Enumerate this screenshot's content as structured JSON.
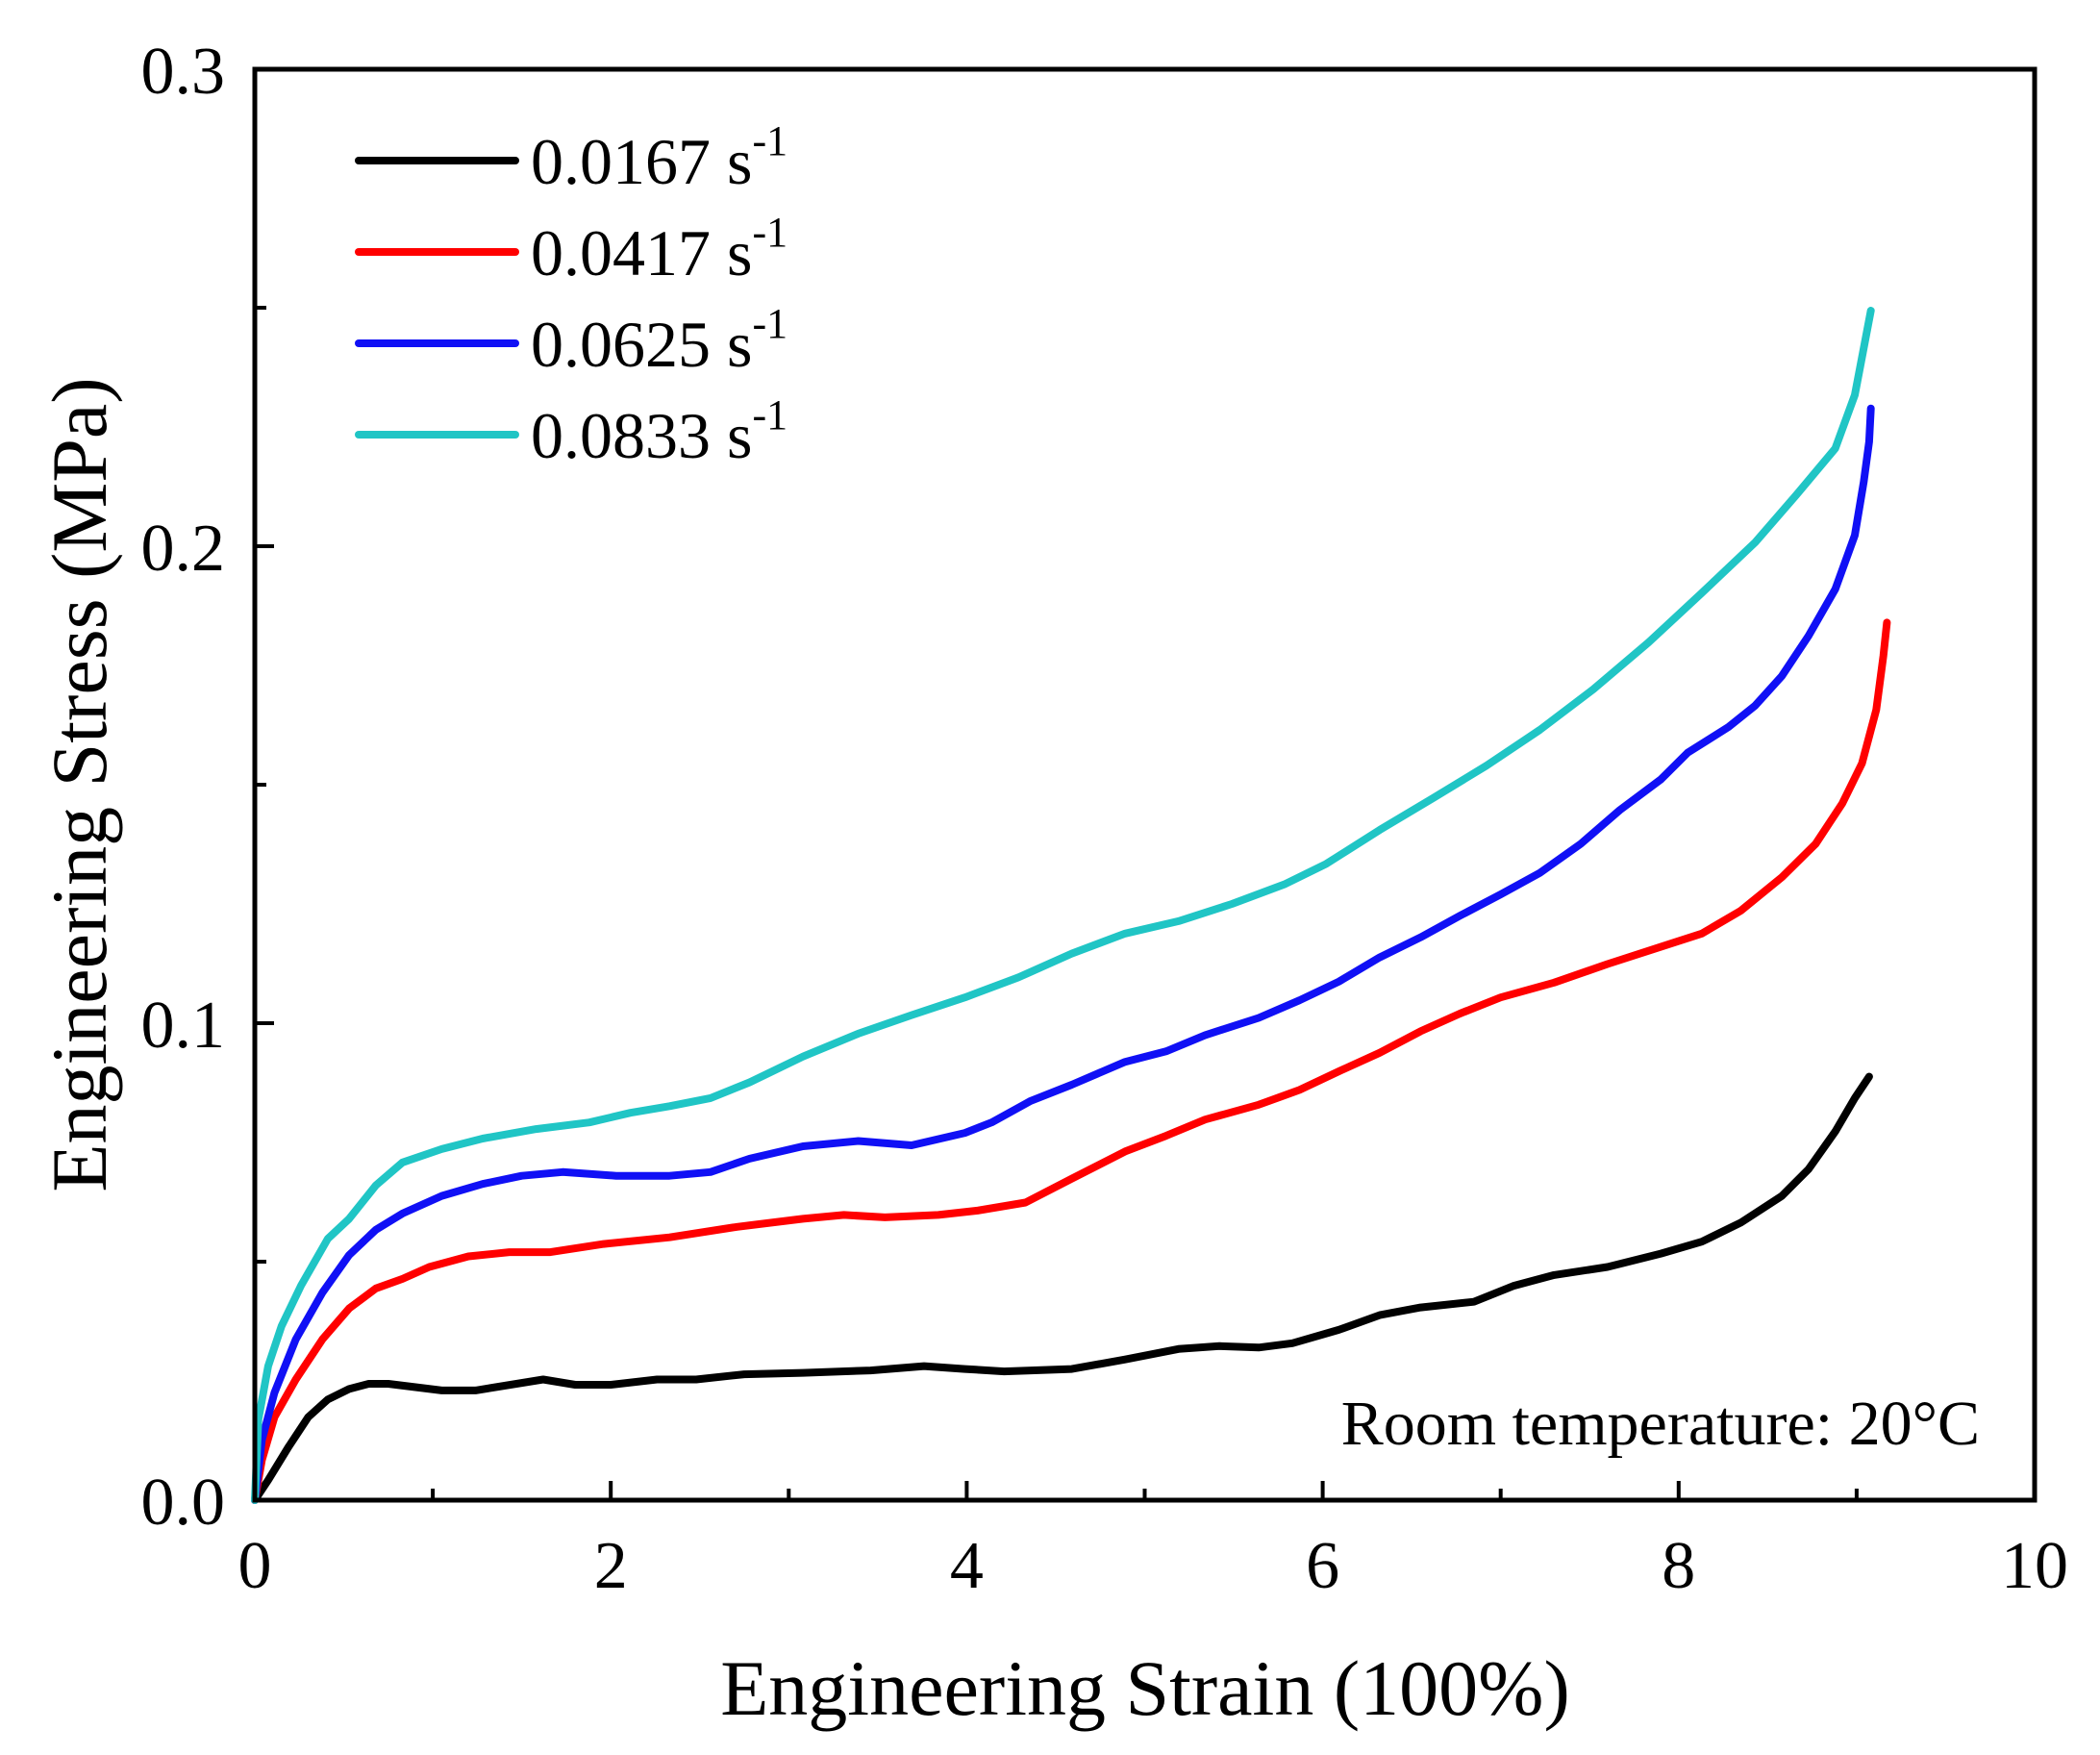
{
  "chart_data": {
    "type": "line",
    "xlabel": "Engineering Strain (100%)",
    "ylabel": "Engineering Stress (MPa)",
    "xlim": [
      0,
      10
    ],
    "ylim": [
      0,
      0.3
    ],
    "x_ticks": [
      0,
      2,
      4,
      6,
      8,
      10
    ],
    "x_tick_labels": [
      "0",
      "2",
      "4",
      "6",
      "8",
      "10"
    ],
    "x_minor_ticks": [
      1,
      3,
      5,
      7,
      9
    ],
    "y_ticks": [
      0,
      0.1,
      0.2,
      0.3
    ],
    "y_tick_labels": [
      "0.0",
      "0.1",
      "0.2",
      "0.3"
    ],
    "y_minor_ticks": [
      0.05,
      0.15,
      0.25
    ],
    "grid": false,
    "legend_position": "top-left",
    "annotation": "Room temperature: 20°C",
    "series": [
      {
        "label": "0.0167 s",
        "exponent": "-1",
        "color": "#000000",
        "points": [
          [
            0,
            0
          ],
          [
            0.075,
            0.0042
          ],
          [
            0.19,
            0.0112
          ],
          [
            0.3,
            0.0174
          ],
          [
            0.41,
            0.0211
          ],
          [
            0.53,
            0.0233
          ],
          [
            0.64,
            0.0244
          ],
          [
            0.75,
            0.0244
          ],
          [
            1.05,
            0.023
          ],
          [
            1.24,
            0.023
          ],
          [
            1.62,
            0.0253
          ],
          [
            1.8,
            0.0242
          ],
          [
            2.0,
            0.0242
          ],
          [
            2.26,
            0.0253
          ],
          [
            2.48,
            0.0253
          ],
          [
            2.75,
            0.0264
          ],
          [
            3.08,
            0.0267
          ],
          [
            3.46,
            0.0272
          ],
          [
            3.76,
            0.0281
          ],
          [
            3.99,
            0.0275
          ],
          [
            4.21,
            0.027
          ],
          [
            4.59,
            0.0275
          ],
          [
            4.89,
            0.0295
          ],
          [
            5.19,
            0.0317
          ],
          [
            5.42,
            0.0323
          ],
          [
            5.64,
            0.032
          ],
          [
            5.83,
            0.0329
          ],
          [
            6.09,
            0.0357
          ],
          [
            6.32,
            0.0388
          ],
          [
            6.55,
            0.0404
          ],
          [
            6.85,
            0.0416
          ],
          [
            7.07,
            0.0449
          ],
          [
            7.3,
            0.0472
          ],
          [
            7.6,
            0.0489
          ],
          [
            7.9,
            0.0517
          ],
          [
            8.13,
            0.0542
          ],
          [
            8.35,
            0.0582
          ],
          [
            8.58,
            0.0638
          ],
          [
            8.73,
            0.0694
          ],
          [
            8.88,
            0.0773
          ],
          [
            8.99,
            0.0843
          ],
          [
            9.07,
            0.0888
          ]
        ]
      },
      {
        "label": "0.0417 s",
        "exponent": "-1",
        "color": "#ff0000",
        "points": [
          [
            0,
            0
          ],
          [
            0.04,
            0.0084
          ],
          [
            0.11,
            0.0174
          ],
          [
            0.23,
            0.0253
          ],
          [
            0.38,
            0.0337
          ],
          [
            0.53,
            0.0402
          ],
          [
            0.68,
            0.0444
          ],
          [
            0.83,
            0.0464
          ],
          [
            0.98,
            0.0489
          ],
          [
            1.2,
            0.0511
          ],
          [
            1.43,
            0.052
          ],
          [
            1.66,
            0.052
          ],
          [
            1.96,
            0.0537
          ],
          [
            2.33,
            0.0551
          ],
          [
            2.71,
            0.0573
          ],
          [
            3.08,
            0.059
          ],
          [
            3.31,
            0.0598
          ],
          [
            3.54,
            0.0593
          ],
          [
            3.84,
            0.0598
          ],
          [
            4.06,
            0.0607
          ],
          [
            4.33,
            0.0624
          ],
          [
            4.59,
            0.0674
          ],
          [
            4.89,
            0.0731
          ],
          [
            5.12,
            0.0764
          ],
          [
            5.34,
            0.0798
          ],
          [
            5.64,
            0.0829
          ],
          [
            5.87,
            0.086
          ],
          [
            6.09,
            0.0899
          ],
          [
            6.32,
            0.0938
          ],
          [
            6.55,
            0.0983
          ],
          [
            6.77,
            0.102
          ],
          [
            7.0,
            0.1054
          ],
          [
            7.3,
            0.1085
          ],
          [
            7.6,
            0.1124
          ],
          [
            7.9,
            0.116
          ],
          [
            8.13,
            0.1188
          ],
          [
            8.35,
            0.1236
          ],
          [
            8.58,
            0.1306
          ],
          [
            8.77,
            0.1376
          ],
          [
            8.92,
            0.1461
          ],
          [
            9.03,
            0.1545
          ],
          [
            9.11,
            0.1657
          ],
          [
            9.15,
            0.177
          ],
          [
            9.17,
            0.184
          ]
        ]
      },
      {
        "label": "0.0625 s",
        "exponent": "-1",
        "color": "#1010f5",
        "points": [
          [
            0,
            0
          ],
          [
            0.04,
            0.0126
          ],
          [
            0.11,
            0.0225
          ],
          [
            0.23,
            0.0337
          ],
          [
            0.38,
            0.0435
          ],
          [
            0.53,
            0.0514
          ],
          [
            0.68,
            0.0567
          ],
          [
            0.83,
            0.0601
          ],
          [
            1.05,
            0.0638
          ],
          [
            1.28,
            0.0663
          ],
          [
            1.5,
            0.068
          ],
          [
            1.73,
            0.0688
          ],
          [
            2.03,
            0.068
          ],
          [
            2.33,
            0.068
          ],
          [
            2.56,
            0.0688
          ],
          [
            2.78,
            0.0716
          ],
          [
            3.08,
            0.0742
          ],
          [
            3.39,
            0.0753
          ],
          [
            3.69,
            0.0744
          ],
          [
            3.99,
            0.077
          ],
          [
            4.14,
            0.0792
          ],
          [
            4.36,
            0.0837
          ],
          [
            4.59,
            0.0871
          ],
          [
            4.89,
            0.0919
          ],
          [
            5.12,
            0.0941
          ],
          [
            5.34,
            0.0975
          ],
          [
            5.64,
            0.1011
          ],
          [
            5.87,
            0.1048
          ],
          [
            6.09,
            0.1087
          ],
          [
            6.32,
            0.1138
          ],
          [
            6.55,
            0.118
          ],
          [
            6.77,
            0.1225
          ],
          [
            7.0,
            0.127
          ],
          [
            7.22,
            0.1315
          ],
          [
            7.45,
            0.1376
          ],
          [
            7.67,
            0.1447
          ],
          [
            7.9,
            0.1511
          ],
          [
            8.05,
            0.1567
          ],
          [
            8.28,
            0.1621
          ],
          [
            8.43,
            0.1666
          ],
          [
            8.58,
            0.1728
          ],
          [
            8.73,
            0.1812
          ],
          [
            8.88,
            0.191
          ],
          [
            8.99,
            0.2023
          ],
          [
            9.04,
            0.2135
          ],
          [
            9.07,
            0.2219
          ],
          [
            9.08,
            0.2289
          ]
        ]
      },
      {
        "label": "0.0833 s",
        "exponent": "-1",
        "color": "#20c5c5",
        "points": [
          [
            0,
            0
          ],
          [
            0.02,
            0.0169
          ],
          [
            0.075,
            0.0281
          ],
          [
            0.15,
            0.0365
          ],
          [
            0.26,
            0.045
          ],
          [
            0.41,
            0.0548
          ],
          [
            0.53,
            0.059
          ],
          [
            0.68,
            0.066
          ],
          [
            0.83,
            0.0708
          ],
          [
            1.05,
            0.0736
          ],
          [
            1.28,
            0.0758
          ],
          [
            1.58,
            0.0778
          ],
          [
            1.88,
            0.0792
          ],
          [
            2.11,
            0.0812
          ],
          [
            2.33,
            0.0826
          ],
          [
            2.56,
            0.0843
          ],
          [
            2.78,
            0.0876
          ],
          [
            3.08,
            0.093
          ],
          [
            3.39,
            0.0978
          ],
          [
            3.69,
            0.1017
          ],
          [
            3.99,
            0.1054
          ],
          [
            4.29,
            0.1096
          ],
          [
            4.59,
            0.1146
          ],
          [
            4.89,
            0.1188
          ],
          [
            5.19,
            0.1214
          ],
          [
            5.49,
            0.125
          ],
          [
            5.79,
            0.1292
          ],
          [
            6.02,
            0.1334
          ],
          [
            6.32,
            0.1405
          ],
          [
            6.62,
            0.1472
          ],
          [
            6.92,
            0.154
          ],
          [
            7.22,
            0.1615
          ],
          [
            7.52,
            0.17
          ],
          [
            7.83,
            0.1798
          ],
          [
            8.13,
            0.1902
          ],
          [
            8.43,
            0.2008
          ],
          [
            8.66,
            0.2107
          ],
          [
            8.88,
            0.2205
          ],
          [
            8.99,
            0.2317
          ],
          [
            9.08,
            0.2494
          ]
        ]
      }
    ]
  }
}
